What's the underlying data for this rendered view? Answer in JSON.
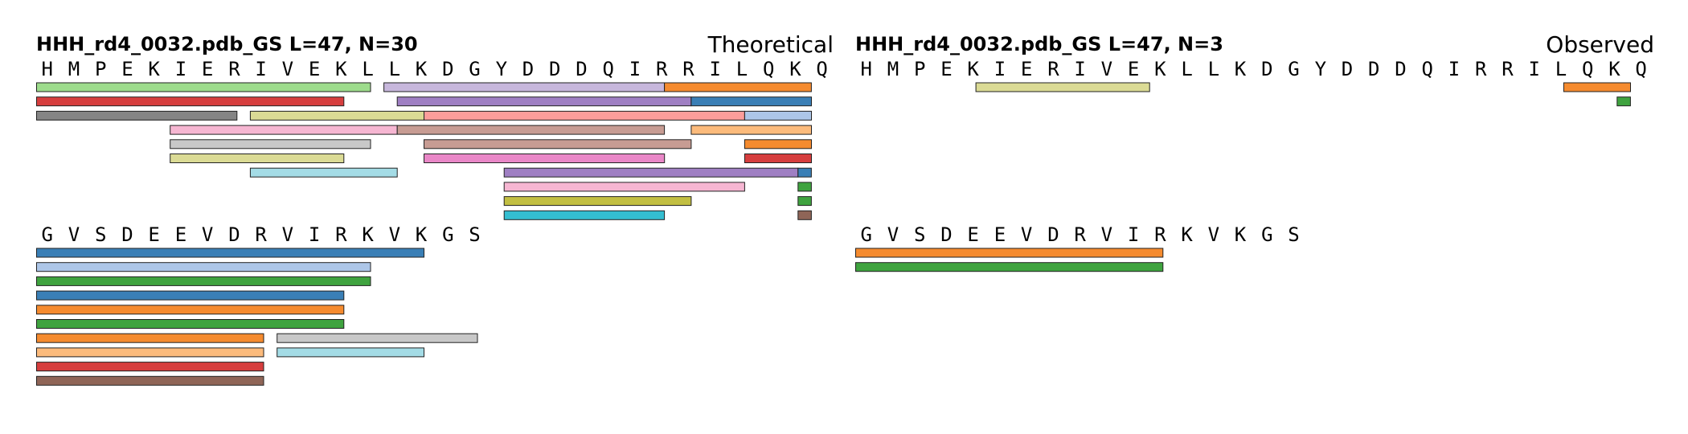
{
  "colors": {
    "blue": "#3a7fb6",
    "orange": "#f58b2f",
    "green": "#3fa33f",
    "red": "#d63e3e",
    "purple": "#9f7fc3",
    "brown": "#8f6557",
    "pink": "#e987c7",
    "gray": "#858585",
    "olive": "#c2bf42",
    "cyan": "#34bed1",
    "lightblue": "#adc6e8",
    "lightorange": "#fcbb7c",
    "lightgreen": "#9ddc8c",
    "lightred": "#fc9d9b",
    "lightpurple": "#c7b7dc",
    "lightbrown": "#c79c93",
    "lightpink": "#f6b6d2",
    "lightgray": "#c8c8c8",
    "lightolive": "#dbdb95",
    "lightcyan": "#a4dce6"
  },
  "panels": [
    {
      "title": "HHH_rd4_0032.pdb_GS  L=47, N=30",
      "label": "Theoretical",
      "rows": [
        {
          "sequence": "HMPEKIERIVEKLLKDGYDDDQIRRILQKQ",
          "start": 1,
          "peptides": [
            {
              "start": 1,
              "end": 25,
              "color": "lightgreen"
            },
            {
              "start": 27,
              "end": 47,
              "color": "lightpurple"
            },
            {
              "start": 48,
              "end": 58,
              "color": "orange"
            },
            {
              "start": 1,
              "end": 23,
              "color": "red"
            },
            {
              "start": 28,
              "end": 49,
              "color": "purple"
            },
            {
              "start": 50,
              "end": 58,
              "color": "blue"
            },
            {
              "start": 1,
              "end": 15,
              "color": "gray"
            },
            {
              "start": 17,
              "end": 29,
              "color": "lightolive"
            },
            {
              "start": 30,
              "end": 53,
              "color": "lightred"
            },
            {
              "start": 54,
              "end": 58,
              "color": "lightblue"
            },
            {
              "start": 11,
              "end": 27,
              "color": "lightpink"
            },
            {
              "start": 28,
              "end": 47,
              "color": "lightbrown"
            },
            {
              "start": 50,
              "end": 58,
              "color": "lightorange"
            },
            {
              "start": 11,
              "end": 25,
              "color": "lightgray"
            },
            {
              "start": 30,
              "end": 49,
              "color": "lightbrown"
            },
            {
              "start": 54,
              "end": 58,
              "color": "orange"
            },
            {
              "start": 11,
              "end": 23,
              "color": "lightolive"
            },
            {
              "start": 30,
              "end": 47,
              "color": "pink"
            },
            {
              "start": 54,
              "end": 58,
              "color": "red"
            },
            {
              "start": 17,
              "end": 27,
              "color": "lightcyan"
            },
            {
              "start": 36,
              "end": 57,
              "color": "purple"
            },
            {
              "start": 58,
              "end": 58,
              "color": "blue"
            },
            {
              "start": 36,
              "end": 53,
              "color": "lightpink"
            },
            {
              "start": 58,
              "end": 58,
              "color": "green"
            },
            {
              "start": 36,
              "end": 49,
              "color": "olive"
            },
            {
              "start": 58,
              "end": 58,
              "color": "green"
            },
            {
              "start": 36,
              "end": 47,
              "color": "cyan"
            },
            {
              "start": 58,
              "end": 58,
              "color": "brown"
            }
          ]
        },
        {
          "sequence": "GVSDEEVDRVIRKVKGS",
          "start": 31,
          "peptides": [
            {
              "start": 31,
              "end": 59,
              "color": "blue"
            },
            {
              "start": 31,
              "end": 55,
              "color": "lightblue"
            },
            {
              "start": 31,
              "end": 55,
              "color": "green"
            },
            {
              "start": 31,
              "end": 53,
              "color": "blue"
            },
            {
              "start": 31,
              "end": 53,
              "color": "orange"
            },
            {
              "start": 31,
              "end": 53,
              "color": "green"
            },
            {
              "start": 31,
              "end": 47,
              "color": "orange"
            },
            {
              "start": 49,
              "end": 63,
              "color": "lightgray"
            },
            {
              "start": 31,
              "end": 47,
              "color": "lightorange"
            },
            {
              "start": 49,
              "end": 59,
              "color": "lightcyan"
            },
            {
              "start": 31,
              "end": 47,
              "color": "red"
            },
            {
              "start": 31,
              "end": 47,
              "color": "brown"
            }
          ]
        }
      ]
    },
    {
      "title": "HHH_rd4_0032.pdb_GS  L=47, N=3",
      "label": "Observed",
      "rows": [
        {
          "sequence": "HMPEKIERIVEKLLKDGYDDDQIRRILQKQ",
          "start": 1,
          "peptides": [
            {
              "start": 10,
              "end": 22,
              "color": "lightolive"
            },
            {
              "start": 54,
              "end": 58,
              "color": "orange"
            },
            {
              "start": 58,
              "end": 58,
              "color": "green"
            }
          ]
        },
        {
          "sequence": "GVSDEEVDRVIRKVKGS",
          "start": 31,
          "peptides": [
            {
              "start": 31,
              "end": 53,
              "color": "orange"
            },
            {
              "start": 31,
              "end": 53,
              "color": "green"
            }
          ]
        }
      ]
    }
  ]
}
